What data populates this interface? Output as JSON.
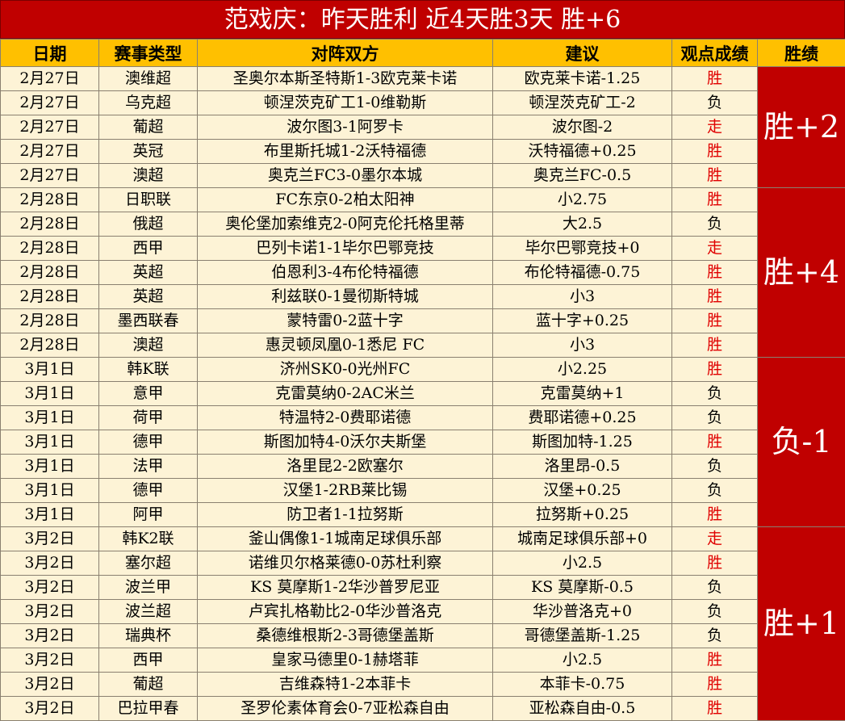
{
  "header": {
    "title": "范戏庆：昨天胜利 近4天胜3天 胜+6"
  },
  "table": {
    "columns": [
      "日期",
      "赛事类型",
      "对阵双方",
      "建议",
      "观点成绩",
      "胜绩"
    ],
    "result_colors": {
      "胜": "#e00000",
      "走": "#e00000",
      "负": "#000000"
    },
    "groups": [
      {
        "summary": "胜+2",
        "rows": [
          [
            "2月27日",
            "澳维超",
            "圣奥尔本斯圣特斯1-3欧克莱卡诺",
            "欧克莱卡诺-1.25",
            "胜"
          ],
          [
            "2月27日",
            "乌克超",
            "顿涅茨克矿工1-0维勒斯",
            "顿涅茨克矿工-2",
            "负"
          ],
          [
            "2月27日",
            "葡超",
            "波尔图3-1阿罗卡",
            "波尔图-2",
            "走"
          ],
          [
            "2月27日",
            "英冠",
            "布里斯托城1-2沃特福德",
            "沃特福德+0.25",
            "胜"
          ],
          [
            "2月27日",
            "澳超",
            "奥克兰FC3-0墨尔本城",
            "奥克兰FC-0.5",
            "胜"
          ]
        ]
      },
      {
        "summary": "胜+4",
        "rows": [
          [
            "2月28日",
            "日职联",
            "FC东京0-2柏太阳神",
            "小2.75",
            "胜"
          ],
          [
            "2月28日",
            "俄超",
            "奥伦堡加索维克2-0阿克伦托格里蒂",
            "大2.5",
            "负"
          ],
          [
            "2月28日",
            "西甲",
            "巴列卡诺1-1毕尔巴鄂竞技",
            "毕尔巴鄂竞技+0",
            "走"
          ],
          [
            "2月28日",
            "英超",
            "伯恩利3-4布伦特福德",
            "布伦特福德-0.75",
            "胜"
          ],
          [
            "2月28日",
            "英超",
            "利兹联0-1曼彻斯特城",
            "小3",
            "胜"
          ],
          [
            "2月28日",
            "墨西联春",
            "蒙特雷0-2蓝十字",
            "蓝十字+0.25",
            "胜"
          ],
          [
            "2月28日",
            "澳超",
            "惠灵顿凤凰0-1悉尼 FC",
            "小3",
            "胜"
          ]
        ]
      },
      {
        "summary": "负-1",
        "rows": [
          [
            "3月1日",
            "韩K联",
            "济州SK0-0光州FC",
            "小2.25",
            "胜"
          ],
          [
            "3月1日",
            "意甲",
            "克雷莫纳0-2AC米兰",
            "克雷莫纳+1",
            "负"
          ],
          [
            "3月1日",
            "荷甲",
            "特温特2-0费耶诺德",
            "费耶诺德+0.25",
            "负"
          ],
          [
            "3月1日",
            "德甲",
            "斯图加特4-0沃尔夫斯堡",
            "斯图加特-1.25",
            "胜"
          ],
          [
            "3月1日",
            "法甲",
            "洛里昆2-2欧塞尔",
            "洛里昂-0.5",
            "负"
          ],
          [
            "3月1日",
            "德甲",
            "汉堡1-2RB莱比锡",
            "汉堡+0.25",
            "负"
          ],
          [
            "3月1日",
            "阿甲",
            "防卫者1-1拉努斯",
            "拉努斯+0.25",
            "胜"
          ]
        ]
      },
      {
        "summary": "胜+1",
        "rows": [
          [
            "3月2日",
            "韩K2联",
            "釜山偶像1-1城南足球俱乐部",
            "城南足球俱乐部+0",
            "走"
          ],
          [
            "3月2日",
            "塞尔超",
            "诺维贝尔格莱德0-0苏杜利察",
            "小2.5",
            "胜"
          ],
          [
            "3月2日",
            "波兰甲",
            "KS 莫摩斯1-2华沙普罗尼亚",
            "KS 莫摩斯-0.5",
            "负"
          ],
          [
            "3月2日",
            "波兰超",
            "卢宾扎格勒比2-0华沙普洛克",
            "华沙普洛克+0",
            "负"
          ],
          [
            "3月2日",
            "瑞典杯",
            "桑德维根斯2-3哥德堡盖斯",
            "哥德堡盖斯-1.25",
            "负"
          ],
          [
            "3月2日",
            "西甲",
            "皇家马德里0-1赫塔菲",
            "小2.5",
            "胜"
          ],
          [
            "3月2日",
            "葡超",
            "吉维森特1-2本菲卡",
            "本菲卡-0.75",
            "胜"
          ],
          [
            "3月2日",
            "巴拉甲春",
            "圣罗伦素体育会0-7亚松森自由",
            "亚松森自由-0.5",
            "胜"
          ]
        ]
      }
    ]
  }
}
